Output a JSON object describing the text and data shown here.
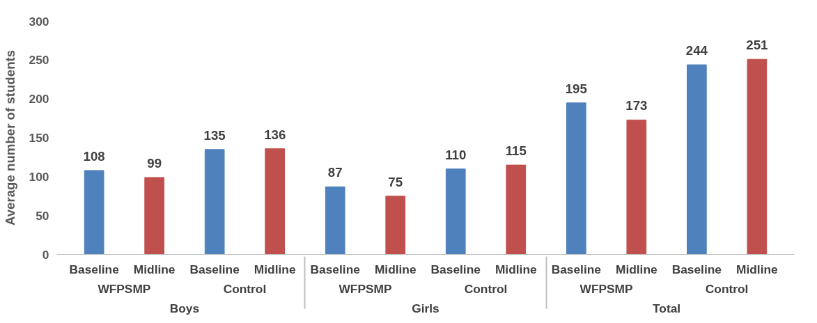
{
  "chart_data": {
    "type": "bar",
    "ylabel": "Average number of students",
    "categories": [
      "Baseline",
      "Midline",
      "Baseline",
      "Midline",
      "Baseline",
      "Midline",
      "Baseline",
      "Midline",
      "Baseline",
      "Midline",
      "Baseline",
      "Midline"
    ],
    "values": [
      108,
      99,
      135,
      136,
      87,
      75,
      110,
      115,
      195,
      173,
      244,
      251
    ],
    "colors": [
      "#4f81bd",
      "#c0504d",
      "#4f81bd",
      "#c0504d",
      "#4f81bd",
      "#c0504d",
      "#4f81bd",
      "#c0504d",
      "#4f81bd",
      "#c0504d",
      "#4f81bd",
      "#c0504d"
    ],
    "annotations": [
      "WFPSMP",
      "Control",
      "WFPSMP",
      "Control",
      "WFPSMP",
      "Control",
      "Boys",
      "Girls",
      "Total"
    ],
    "ylim": [
      0,
      300
    ],
    "yticks": [
      0,
      50,
      100,
      150,
      200,
      250,
      300
    ],
    "data_labels": true,
    "grid": false
  }
}
